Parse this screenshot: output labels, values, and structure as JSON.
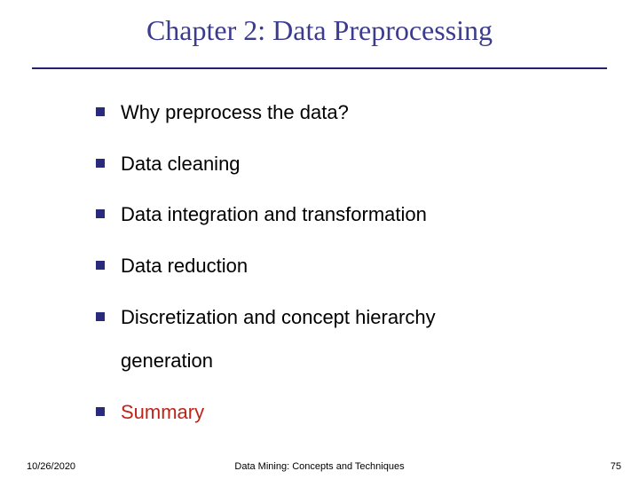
{
  "title": "Chapter 2: Data Preprocessing",
  "title_color": "#3b3b8f",
  "rule_color": "#22226f",
  "bullet_color": "#2a2a7a",
  "body_text_color": "#000000",
  "summary_color": "#c02418",
  "body_fontsize": 22,
  "title_fontsize": 32,
  "items": [
    {
      "text": "Why preprocess the data?",
      "highlight": false
    },
    {
      "text": "Data cleaning",
      "highlight": false
    },
    {
      "text": "Data integration and transformation",
      "highlight": false
    },
    {
      "text": "Data reduction",
      "highlight": false
    },
    {
      "text": "Discretization and concept hierarchy",
      "continuation": "generation",
      "highlight": false
    },
    {
      "text": "Summary",
      "highlight": true
    }
  ],
  "footer": {
    "date": "10/26/2020",
    "center": "Data Mining: Concepts and Techniques",
    "page": "75"
  }
}
